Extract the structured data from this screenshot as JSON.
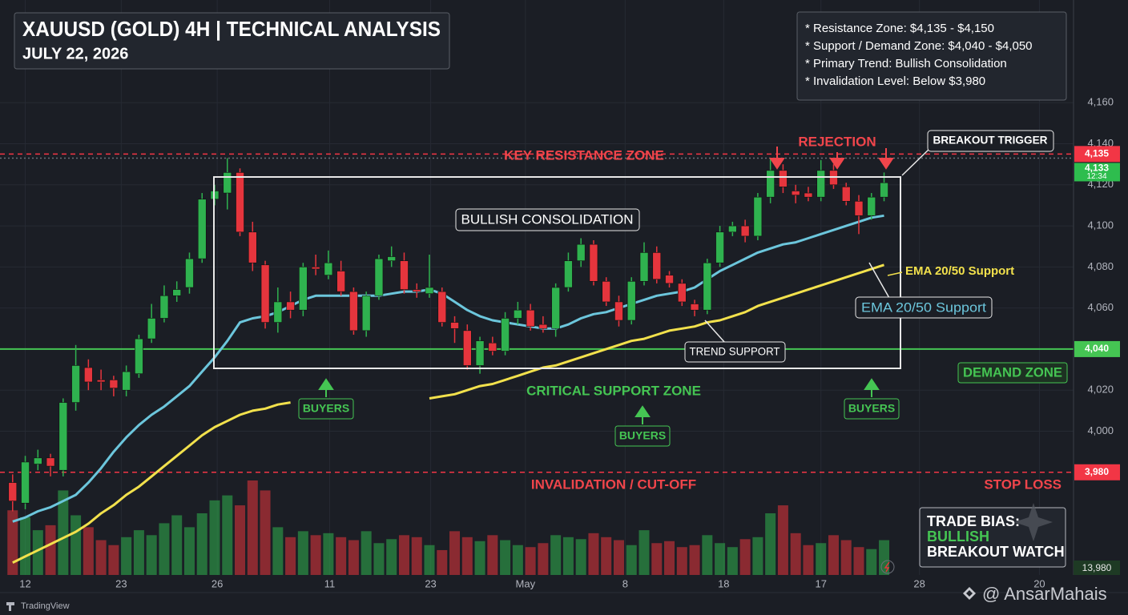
{
  "chart_data": {
    "type": "candlestick",
    "title": "XAUUSD (GOLD) 4H | TECHNICAL ANALYSIS",
    "subtitle": "JULY 22, 2026",
    "info": [
      "* Resistance Zone: $4,135 - $4,150",
      "* Support / Demand Zone: $4,040 - $4,050",
      "* Primary Trend: Bullish Consolidation",
      "* Invalidation Level: Below $3,980"
    ],
    "xlim": [
      -1,
      84
    ],
    "xticks": [
      {
        "value": 1,
        "label": "12"
      },
      {
        "value": 8.6,
        "label": "23"
      },
      {
        "value": 16.2,
        "label": "26"
      },
      {
        "value": 25.1,
        "label": "11"
      },
      {
        "value": 33.1,
        "label": "23"
      },
      {
        "value": 40.6,
        "label": "May"
      },
      {
        "value": 48.5,
        "label": "8"
      },
      {
        "value": 56.3,
        "label": "18"
      },
      {
        "value": 64,
        "label": "17"
      },
      {
        "value": 71.8,
        "label": "28"
      },
      {
        "value": 81.3,
        "label": "20"
      }
    ],
    "ylim": [
      3930,
      4210
    ],
    "yticks": [
      {
        "value": 4000,
        "label": "4,000"
      },
      {
        "value": 4020,
        "label": "4,020"
      },
      {
        "value": 4040,
        "label": "4,040"
      },
      {
        "value": 4060,
        "label": "4,060"
      },
      {
        "value": 4080,
        "label": "4,080"
      },
      {
        "value": 4100,
        "label": "4,100"
      },
      {
        "value": 4120,
        "label": "4,120"
      },
      {
        "value": 4140,
        "label": "4,140"
      },
      {
        "value": 4160,
        "label": "4,160"
      }
    ],
    "grid": true,
    "up_color": "#2fb24f",
    "down_color": "#e5353d",
    "candles": {
      "open": [
        3975,
        3965,
        3984,
        3987,
        3981,
        4014,
        4031,
        4025,
        4025,
        4020,
        4028,
        4045,
        4055,
        4066,
        4070,
        4084,
        4113,
        4116,
        4126,
        4097,
        4081,
        4053,
        4063,
        4059,
        4080,
        4076,
        4078,
        4068,
        4049,
        4066,
        4083,
        4083,
        4069,
        4067,
        4068,
        4053,
        4049,
        4032,
        4043,
        4039,
        4055,
        4059,
        4052,
        4050,
        4070,
        4083,
        4091,
        4073,
        4063,
        4054,
        4073,
        4087,
        4076,
        4072,
        4062,
        4059,
        4082,
        4097,
        4100,
        4095,
        4114,
        4127,
        4117,
        4116,
        4114,
        4127,
        4119,
        4112,
        4105,
        4114
      ],
      "high": [
        3979,
        3988,
        3991,
        3989,
        4016,
        4042,
        4035,
        4030,
        4027,
        4032,
        4047,
        4062,
        4071,
        4073,
        4087,
        4116,
        4120,
        4133,
        4128,
        4102,
        4083,
        4070,
        4068,
        4082,
        4086,
        4088,
        4083,
        4070,
        4068,
        4086,
        4090,
        4087,
        4072,
        4086,
        4070,
        4056,
        4052,
        4046,
        4046,
        4058,
        4063,
        4062,
        4056,
        4072,
        4087,
        4094,
        4093,
        4075,
        4066,
        4075,
        4092,
        4090,
        4078,
        4074,
        4064,
        4084,
        4100,
        4102,
        4103,
        4116,
        4133,
        4130,
        4120,
        4119,
        4132,
        4130,
        4121,
        4115,
        4116,
        4126
      ],
      "low": [
        3961,
        3962,
        3981,
        3978,
        3978,
        4010,
        4020,
        4020,
        4017,
        4017,
        4026,
        4043,
        4053,
        4063,
        4067,
        4082,
        4110,
        4108,
        4095,
        4078,
        4050,
        4048,
        4055,
        4056,
        4076,
        4074,
        4066,
        4047,
        4046,
        4064,
        4080,
        4067,
        4065,
        4065,
        4051,
        4043,
        4030,
        4028,
        4037,
        4037,
        4052,
        4049,
        4048,
        4046,
        4068,
        4080,
        4071,
        4061,
        4051,
        4052,
        4071,
        4072,
        4070,
        4061,
        4056,
        4057,
        4080,
        4095,
        4092,
        4093,
        4111,
        4116,
        4111,
        4112,
        4112,
        4118,
        4110,
        4096,
        4103,
        4112
      ],
      "close": [
        3966,
        3985,
        3987,
        3983,
        4014,
        4032,
        4024,
        4024,
        4021,
        4029,
        4045,
        4055,
        4066,
        4069,
        4084,
        4113,
        4117,
        4126,
        4097,
        4082,
        4053,
        4063,
        4059,
        4080,
        4079,
        4082,
        4068,
        4049,
        4066,
        4084,
        4085,
        4069,
        4068,
        4070,
        4053,
        4050,
        4032,
        4044,
        4039,
        4055,
        4059,
        4051,
        4050,
        4070,
        4083,
        4091,
        4073,
        4063,
        4054,
        4073,
        4087,
        4074,
        4072,
        4063,
        4059,
        4082,
        4097,
        4100,
        4095,
        4114,
        4127,
        4119,
        4115,
        4114,
        4127,
        4120,
        4112,
        4105,
        4114,
        4121
      ]
    },
    "series": [
      {
        "color": "#6cc6dc",
        "values": [
          3956,
          3958,
          3961,
          3963,
          3966,
          3969,
          3975,
          3982,
          3990,
          3997,
          4003,
          4008,
          4012,
          4017,
          4022,
          4029,
          4036,
          4044,
          4053,
          4055,
          4056,
          4058,
          4061,
          4064,
          4066,
          4066,
          4066,
          4066,
          4066,
          4066,
          4067,
          4068,
          4068,
          4069,
          4067,
          4063,
          4059,
          4056,
          4054,
          4053,
          4052,
          4051,
          4050,
          4050,
          4052,
          4055,
          4057,
          4058,
          4060,
          4062,
          4064,
          4066,
          4067,
          4068,
          4070,
          4074,
          4078,
          4081,
          4084,
          4087,
          4089,
          4091,
          4092,
          4094,
          4096,
          4098,
          4100,
          4102,
          4104,
          4105
        ]
      },
      {
        "color": "#f2e14c",
        "values": [
          3936,
          3939,
          3942,
          3945,
          3948,
          3951,
          3955,
          3960,
          3964,
          3969,
          3973,
          3978,
          3983,
          3988,
          3993,
          3998,
          4002,
          4005,
          4008,
          4010,
          4011,
          4013,
          4014,
          null,
          null,
          null,
          null,
          null,
          null,
          null,
          null,
          null,
          null,
          4016,
          4017,
          4018,
          4020,
          4022,
          4023,
          4025,
          4027,
          4029,
          4031,
          4032,
          4034,
          4036,
          4038,
          4040,
          4042,
          4044,
          4045,
          4047,
          4049,
          4050,
          4051,
          4053,
          4054,
          4056,
          4058,
          4061,
          4063,
          4065,
          4067,
          4069,
          4071,
          4073,
          4075,
          4077,
          4079,
          4081
        ]
      }
    ],
    "volume": {
      "values": [
        65,
        58,
        45,
        50,
        85,
        60,
        48,
        35,
        30,
        38,
        45,
        40,
        52,
        60,
        48,
        62,
        75,
        80,
        70,
        95,
        85,
        48,
        38,
        44,
        40,
        42,
        38,
        35,
        44,
        32,
        36,
        40,
        38,
        30,
        25,
        44,
        38,
        34,
        40,
        35,
        30,
        28,
        32,
        40,
        38,
        36,
        42,
        38,
        35,
        30,
        45,
        32,
        34,
        28,
        30,
        40,
        32,
        28,
        36,
        38,
        62,
        70,
        42,
        30,
        32,
        40,
        35,
        28,
        26,
        35
      ]
    },
    "levels": [
      {
        "value": 4135,
        "label": "4,135",
        "color": "#f23645",
        "style": "dashed"
      },
      {
        "value": 4133,
        "label": "4,133",
        "sublabel": "12:34",
        "color": "#2ebd4e",
        "style": "dotted"
      },
      {
        "value": 4040,
        "label": "4,040",
        "color": "#45c553",
        "style": "solid"
      },
      {
        "value": 3980,
        "label": "3,980",
        "color": "#f23645",
        "style": "dashed"
      }
    ],
    "volume_label": "13,980",
    "annotations": {
      "resistance": "KEY RESISTANCE ZONE",
      "rejection": "REJECTION",
      "breakout": "BREAKOUT TRIGGER",
      "consolidation": "BULLISH CONSOLIDATION",
      "ema_yellow": "EMA 20/50 Support",
      "ema_cyan": "EMA 20/50 Support",
      "trend": "TREND SUPPORT",
      "demand": "DEMAND ZONE",
      "critical": "CRITICAL SUPPORT ZONE",
      "buyers": [
        "BUYERS",
        "BUYERS",
        "BUYERS"
      ],
      "invalidation": "INVALIDATION / CUT-OFF",
      "stop": "STOP LOSS"
    },
    "trade_bias": [
      "TRADE BIAS:",
      "BULLISH",
      "BREAKOUT WATCH"
    ],
    "footer": {
      "source": "TradingView",
      "credit": "@ AnsarMahais"
    }
  }
}
